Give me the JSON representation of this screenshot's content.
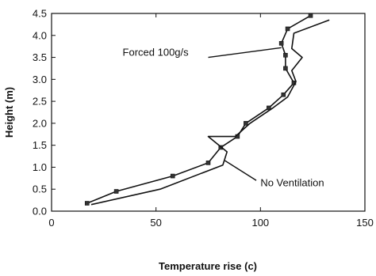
{
  "chart_data": {
    "type": "line",
    "xlabel": "Temperature rise (c)",
    "ylabel": "Height (m)",
    "xlim": [
      0,
      150
    ],
    "ylim": [
      0,
      4.5
    ],
    "xticks": [
      "0",
      "50",
      "100",
      "150"
    ],
    "yticks": [
      "0.0",
      "0.5",
      "1.0",
      "1.5",
      "2.0",
      "2.5",
      "3.0",
      "3.5",
      "4.0",
      "4.5"
    ],
    "grid": false,
    "legend": "none",
    "series": [
      {
        "name": "Forced 100g/s",
        "marker": "square",
        "points": [
          [
            17,
            0.18
          ],
          [
            31,
            0.45
          ],
          [
            58,
            0.8
          ],
          [
            75,
            1.1
          ],
          [
            81,
            1.45
          ],
          [
            89,
            1.7
          ],
          [
            93,
            2.0
          ],
          [
            104,
            2.35
          ],
          [
            111,
            2.65
          ],
          [
            116,
            2.92
          ],
          [
            112,
            3.25
          ],
          [
            112,
            3.55
          ],
          [
            110,
            3.82
          ],
          [
            113,
            4.15
          ],
          [
            124,
            4.45
          ]
        ]
      },
      {
        "name": "No Ventilation",
        "marker": "none",
        "points": [
          [
            19,
            0.15
          ],
          [
            52,
            0.5
          ],
          [
            82,
            1.05
          ],
          [
            84,
            1.35
          ],
          [
            75,
            1.7
          ],
          [
            88,
            1.7
          ],
          [
            95,
            2.0
          ],
          [
            106,
            2.35
          ],
          [
            113,
            2.6
          ],
          [
            117,
            2.95
          ],
          [
            115,
            3.2
          ],
          [
            120,
            3.5
          ],
          [
            115,
            3.7
          ],
          [
            116,
            4.05
          ],
          [
            133,
            4.35
          ]
        ]
      }
    ],
    "annotations": [
      {
        "text": "Forced 100g/s",
        "label_at": [
          34,
          3.62
        ],
        "arrow_from": [
          75,
          3.5
        ],
        "arrow_to": [
          110,
          3.72
        ]
      },
      {
        "text": "No Ventilation",
        "label_at": [
          100,
          0.65
        ],
        "arrow_from": [
          98,
          0.7
        ],
        "arrow_to": [
          83,
          1.15
        ]
      }
    ]
  }
}
